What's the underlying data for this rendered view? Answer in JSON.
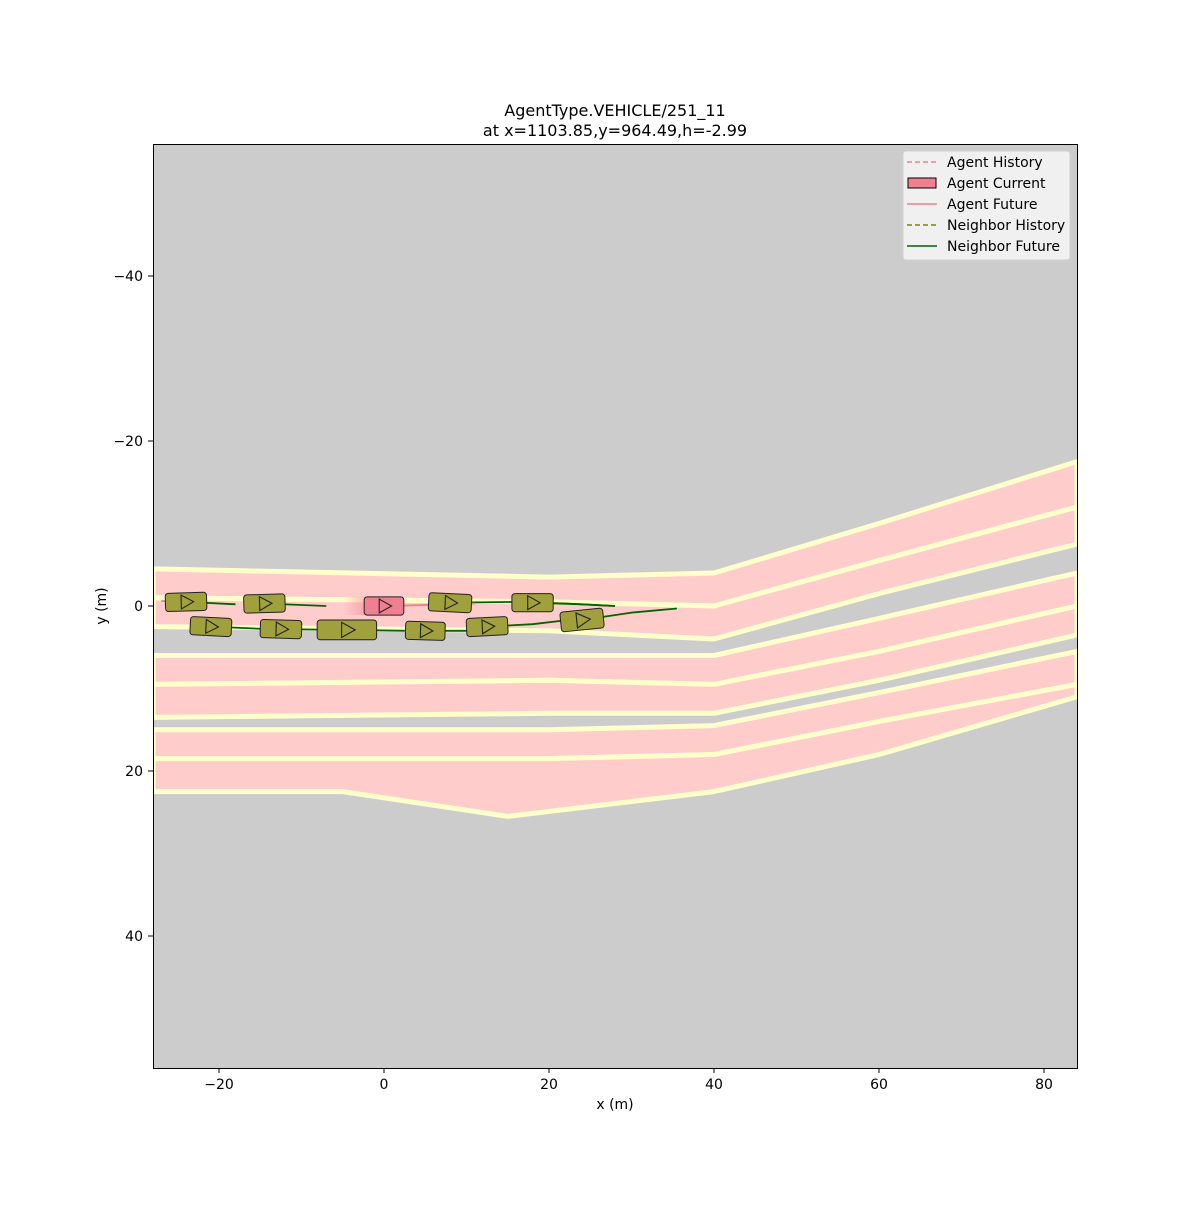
{
  "chart_data": {
    "type": "scatter",
    "title": [
      "AgentType.VEHICLE/251_11",
      "at x=1103.85,y=964.49,h=-2.99"
    ],
    "xlabel": "x (m)",
    "ylabel": "y (m)",
    "xlim": [
      -28,
      84
    ],
    "ylim": [
      56,
      -56
    ],
    "y_axis_inverted": true,
    "xticks": [
      -20,
      0,
      20,
      40,
      60,
      80
    ],
    "yticks": [
      -40,
      -20,
      0,
      20,
      40
    ],
    "xtick_labels": [
      "−20",
      "0",
      "20",
      "40",
      "60",
      "80"
    ],
    "ytick_labels": [
      "−40",
      "−20",
      "0",
      "20",
      "40"
    ],
    "grid": false,
    "legend_position": "top-right",
    "legend": [
      {
        "label": "Agent History",
        "style": "dashed",
        "color": "#f08090"
      },
      {
        "label": "Agent Current",
        "style": "box",
        "color": "#f08090"
      },
      {
        "label": "Agent Future",
        "style": "solid",
        "color": "#f08090"
      },
      {
        "label": "Neighbor History",
        "style": "dashed",
        "color": "#808000"
      },
      {
        "label": "Neighbor Future",
        "style": "solid",
        "color": "#006400"
      }
    ],
    "colors": {
      "background": "#cccccc",
      "lane": "#ffcccc",
      "lane_edge": "#ffffcc",
      "agent": "#f08090",
      "neighbor": "#a0a03c",
      "neighbor_future": "#006400"
    },
    "map_lanes": [
      {
        "left": [
          [
            -28,
            -4.5
          ],
          [
            20,
            -3.5
          ],
          [
            40,
            -4
          ],
          [
            60,
            -10
          ],
          [
            84,
            -17.5
          ]
        ],
        "right": [
          [
            -28,
            -1
          ],
          [
            20,
            -0.5
          ],
          [
            40,
            0
          ],
          [
            60,
            -5.5
          ],
          [
            84,
            -12
          ]
        ]
      },
      {
        "left": [
          [
            -28,
            -1
          ],
          [
            20,
            -0.5
          ],
          [
            40,
            0
          ],
          [
            60,
            -5.5
          ],
          [
            84,
            -12
          ]
        ],
        "right": [
          [
            -28,
            2.5
          ],
          [
            20,
            3
          ],
          [
            40,
            4
          ],
          [
            60,
            -1.5
          ],
          [
            84,
            -7.5
          ]
        ]
      },
      {
        "left": [
          [
            -28,
            6
          ],
          [
            20,
            6
          ],
          [
            40,
            6
          ],
          [
            60,
            1.5
          ],
          [
            84,
            -4
          ]
        ],
        "right": [
          [
            -28,
            9.5
          ],
          [
            20,
            9
          ],
          [
            40,
            9.5
          ],
          [
            60,
            5.5
          ],
          [
            84,
            0
          ]
        ]
      },
      {
        "left": [
          [
            -28,
            9.5
          ],
          [
            20,
            9
          ],
          [
            40,
            9.5
          ],
          [
            60,
            5.5
          ],
          [
            84,
            0
          ]
        ],
        "right": [
          [
            -28,
            13.5
          ],
          [
            20,
            13
          ],
          [
            40,
            13
          ],
          [
            60,
            9
          ],
          [
            84,
            3.5
          ]
        ]
      },
      {
        "left": [
          [
            -28,
            15
          ],
          [
            20,
            15
          ],
          [
            40,
            14.5
          ],
          [
            60,
            10.5
          ],
          [
            84,
            5.5
          ]
        ],
        "right": [
          [
            -28,
            18.5
          ],
          [
            20,
            18.5
          ],
          [
            40,
            18
          ],
          [
            60,
            14
          ],
          [
            84,
            9.5
          ]
        ]
      },
      {
        "left": [
          [
            -28,
            18.5
          ],
          [
            20,
            18.5
          ],
          [
            40,
            18
          ],
          [
            60,
            14
          ],
          [
            84,
            9.5
          ]
        ],
        "right": [
          [
            -28,
            22.5
          ],
          [
            -5,
            22.5
          ],
          [
            15,
            25.5
          ],
          [
            40,
            22.5
          ],
          [
            60,
            18
          ],
          [
            84,
            11
          ]
        ]
      }
    ],
    "agent": {
      "x": 0,
      "y": 0,
      "heading": 0,
      "length": 4.8,
      "width": 2.2,
      "history": [
        [
          -5,
          0
        ],
        [
          -2.5,
          0
        ],
        [
          0,
          0
        ]
      ],
      "future": [
        [
          0,
          0
        ],
        [
          4,
          -0.1
        ],
        [
          8,
          -0.2
        ],
        [
          11,
          -0.3
        ]
      ]
    },
    "neighbors": [
      {
        "x": -24,
        "y": -0.5,
        "heading": -0.03,
        "length": 5,
        "width": 2.2,
        "history": [
          [
            -27,
            -0.6
          ],
          [
            -24,
            -0.5
          ]
        ],
        "future": [
          [
            -24,
            -0.5
          ],
          [
            -18,
            -0.2
          ]
        ]
      },
      {
        "x": -14.5,
        "y": -0.3,
        "heading": -0.03,
        "length": 5,
        "width": 2.2,
        "history": [
          [
            -17,
            -0.4
          ],
          [
            -14.5,
            -0.3
          ]
        ],
        "future": [
          [
            -14.5,
            -0.3
          ],
          [
            -7,
            0
          ]
        ]
      },
      {
        "x": 8,
        "y": -0.4,
        "heading": 0.05,
        "length": 5.2,
        "width": 2.2,
        "history": [
          [
            5.5,
            -0.3
          ],
          [
            8,
            -0.4
          ]
        ],
        "future": [
          [
            8,
            -0.4
          ],
          [
            16,
            -0.5
          ],
          [
            22,
            -0.3
          ],
          [
            28,
            0
          ]
        ]
      },
      {
        "x": 18,
        "y": -0.4,
        "heading": 0,
        "length": 5,
        "width": 2.2,
        "history": [
          [
            15.5,
            -0.4
          ],
          [
            18,
            -0.4
          ]
        ],
        "future": [
          [
            18,
            -0.4
          ],
          [
            24,
            -0.2
          ],
          [
            28,
            0
          ]
        ]
      },
      {
        "x": -21,
        "y": 2.5,
        "heading": 0.05,
        "length": 5,
        "width": 2.2,
        "history": [
          [
            -23,
            2.4
          ],
          [
            -21,
            2.5
          ]
        ],
        "future": [
          [
            -21,
            2.5
          ],
          [
            -14,
            2.8
          ]
        ]
      },
      {
        "x": -12.5,
        "y": 2.8,
        "heading": 0.03,
        "length": 5,
        "width": 2.2,
        "history": [
          [
            -15,
            2.7
          ],
          [
            -12.5,
            2.8
          ]
        ],
        "future": [
          [
            -12.5,
            2.8
          ],
          [
            -5,
            2.9
          ]
        ]
      },
      {
        "x": -4.5,
        "y": 2.9,
        "heading": 0,
        "length": 7.2,
        "width": 2.4,
        "history": [
          [
            -7,
            2.9
          ],
          [
            -4.5,
            2.9
          ]
        ],
        "future": [
          [
            -4.5,
            2.9
          ],
          [
            3,
            3
          ]
        ]
      },
      {
        "x": 5,
        "y": 3,
        "heading": 0.03,
        "length": 4.8,
        "width": 2.2,
        "history": [
          [
            2.5,
            3
          ],
          [
            5,
            3
          ]
        ],
        "future": [
          [
            5,
            3
          ],
          [
            10,
            3
          ]
        ]
      },
      {
        "x": 12.5,
        "y": 2.5,
        "heading": -0.05,
        "length": 5,
        "width": 2.2,
        "history": [
          [
            10,
            2.7
          ],
          [
            12.5,
            2.5
          ]
        ],
        "future": [
          [
            12.5,
            2.5
          ],
          [
            18,
            2.2
          ],
          [
            24,
            1.5
          ]
        ]
      },
      {
        "x": 24,
        "y": 1.7,
        "heading": -0.1,
        "length": 5.2,
        "width": 2.4,
        "history": [
          [
            21.5,
            2
          ],
          [
            24,
            1.7
          ]
        ],
        "future": [
          [
            24,
            1.7
          ],
          [
            30,
            0.8
          ],
          [
            35.5,
            0.3
          ]
        ]
      }
    ]
  }
}
